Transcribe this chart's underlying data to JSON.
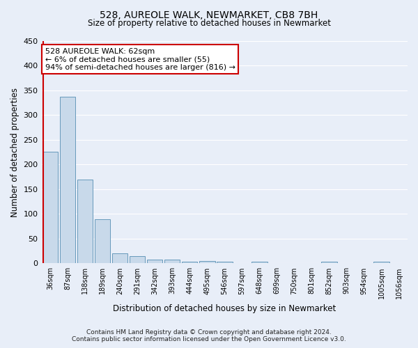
{
  "title1": "528, AUREOLE WALK, NEWMARKET, CB8 7BH",
  "title2": "Size of property relative to detached houses in Newmarket",
  "xlabel": "Distribution of detached houses by size in Newmarket",
  "ylabel": "Number of detached properties",
  "bar_color": "#c8d9ea",
  "bar_edge_color": "#6699bb",
  "background_color": "#e8eef8",
  "fig_background_color": "#e8eef8",
  "grid_color": "#ffffff",
  "categories": [
    "36sqm",
    "87sqm",
    "138sqm",
    "189sqm",
    "240sqm",
    "291sqm",
    "342sqm",
    "393sqm",
    "444sqm",
    "495sqm",
    "546sqm",
    "597sqm",
    "648sqm",
    "699sqm",
    "750sqm",
    "801sqm",
    "852sqm",
    "903sqm",
    "954sqm",
    "1005sqm",
    "1056sqm"
  ],
  "values": [
    226,
    338,
    170,
    89,
    21,
    15,
    7,
    8,
    4,
    5,
    3,
    0,
    4,
    0,
    0,
    0,
    3,
    0,
    0,
    3,
    0
  ],
  "vline_color": "#cc0000",
  "annotation_text": "528 AUREOLE WALK: 62sqm\n← 6% of detached houses are smaller (55)\n94% of semi-detached houses are larger (816) →",
  "annotation_box_color": "#ffffff",
  "annotation_box_edge": "#cc0000",
  "footnote1": "Contains HM Land Registry data © Crown copyright and database right 2024.",
  "footnote2": "Contains public sector information licensed under the Open Government Licence v3.0.",
  "ylim": [
    0,
    450
  ]
}
